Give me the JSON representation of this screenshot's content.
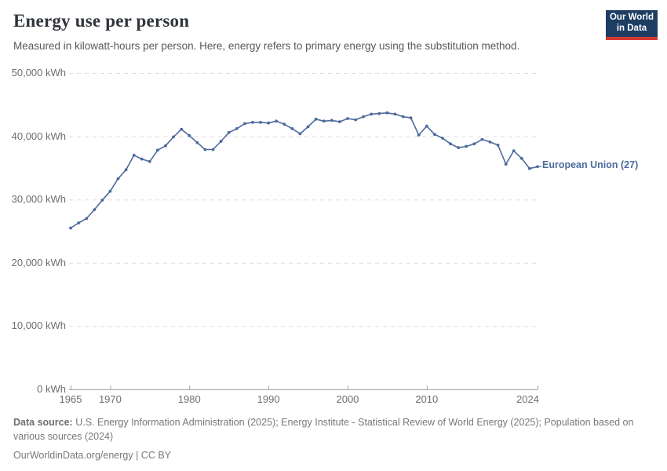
{
  "header": {
    "title": "Energy use per person",
    "subtitle": "Measured in kilowatt-hours per person. Here, energy refers to primary energy using the substitution method.",
    "logo": {
      "line1": "Our World",
      "line2": "in Data",
      "bg_color": "#1d3d63",
      "accent_color": "#d73a34"
    }
  },
  "chart_data": {
    "type": "line",
    "title": "Energy use per person",
    "unit": "kWh",
    "xlabel": "",
    "ylabel": "",
    "xlim": [
      1965,
      2024
    ],
    "ylim": [
      0,
      50000
    ],
    "grid": "horizontal-dashed",
    "legend_position": "end-of-line-label",
    "x_ticks": [
      {
        "value": 1965,
        "label": "1965"
      },
      {
        "value": 1970,
        "label": "1970"
      },
      {
        "value": 1980,
        "label": "1980"
      },
      {
        "value": 1990,
        "label": "1990"
      },
      {
        "value": 2000,
        "label": "2000"
      },
      {
        "value": 2010,
        "label": "2010"
      },
      {
        "value": 2024,
        "label": "2024"
      }
    ],
    "y_ticks": [
      {
        "value": 0,
        "label": "0 kWh"
      },
      {
        "value": 10000,
        "label": "10,000 kWh"
      },
      {
        "value": 20000,
        "label": "20,000 kWh"
      },
      {
        "value": 30000,
        "label": "30,000 kWh"
      },
      {
        "value": 40000,
        "label": "40,000 kWh"
      },
      {
        "value": 50000,
        "label": "50,000 kWh"
      }
    ],
    "series": [
      {
        "name": "European Union (27)",
        "color": "#4c6a9c",
        "years": [
          1965,
          1966,
          1967,
          1968,
          1969,
          1970,
          1971,
          1972,
          1973,
          1974,
          1975,
          1976,
          1977,
          1978,
          1979,
          1980,
          1981,
          1982,
          1983,
          1984,
          1985,
          1986,
          1987,
          1988,
          1989,
          1990,
          1991,
          1992,
          1993,
          1994,
          1995,
          1996,
          1997,
          1998,
          1999,
          2000,
          2001,
          2002,
          2003,
          2004,
          2005,
          2006,
          2007,
          2008,
          2009,
          2010,
          2011,
          2012,
          2013,
          2014,
          2015,
          2016,
          2017,
          2018,
          2019,
          2020,
          2021,
          2022,
          2023,
          2024
        ],
        "values": [
          25500,
          26300,
          27000,
          28400,
          29900,
          31300,
          33300,
          34700,
          37000,
          36400,
          36000,
          37800,
          38500,
          39900,
          41100,
          40100,
          39000,
          37900,
          37900,
          39200,
          40600,
          41200,
          42000,
          42200,
          42200,
          42100,
          42400,
          41900,
          41200,
          40400,
          41500,
          42700,
          42400,
          42500,
          42300,
          42800,
          42600,
          43100,
          43500,
          43600,
          43700,
          43500,
          43100,
          42900,
          40200,
          41600,
          40300,
          39700,
          38800,
          38200,
          38400,
          38800,
          39500,
          39100,
          38600,
          35600,
          37700,
          36500,
          34900,
          35200
        ]
      }
    ]
  },
  "footer": {
    "source_label": "Data source:",
    "source_text": "U.S. Energy Information Administration (2025); Energy Institute - Statistical Review of World Energy (2025); Population based on various sources (2024)",
    "link_line": "OurWorldinData.org/energy | CC BY"
  }
}
